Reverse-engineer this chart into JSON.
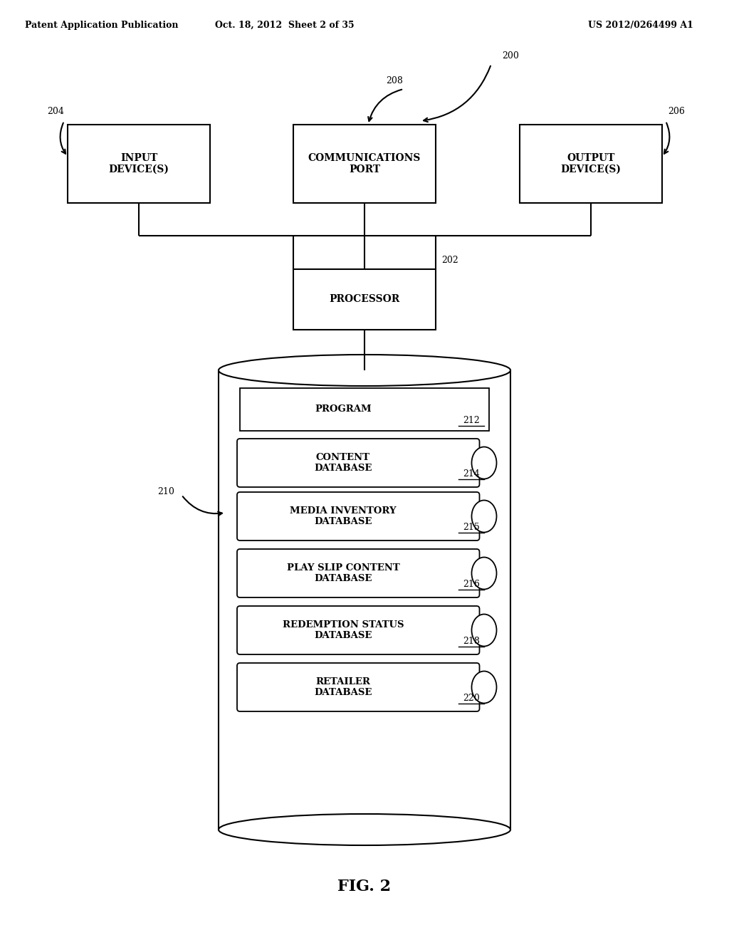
{
  "bg_color": "#ffffff",
  "header_left": "Patent Application Publication",
  "header_mid": "Oct. 18, 2012  Sheet 2 of 35",
  "header_right": "US 2012/0264499 A1",
  "fig_label": "FIG. 2",
  "ref_200": "200",
  "ref_202": "202",
  "ref_204": "204",
  "ref_206": "206",
  "ref_208": "208",
  "ref_210": "210",
  "box_input": "INPUT\nDEVICE(S)",
  "box_comm": "COMMUNICATIONS\nPORT",
  "box_output": "OUTPUT\nDEVICE(S)",
  "box_processor": "PROCESSOR",
  "db_program": "PROGRAM",
  "db_program_ref": "212",
  "db_content": "CONTENT\nDATABASE",
  "db_content_ref": "214",
  "db_media": "MEDIA INVENTORY\nDATABASE",
  "db_media_ref": "215",
  "db_playslip": "PLAY SLIP CONTENT\nDATABASE",
  "db_playslip_ref": "216",
  "db_redemption": "REDEMPTION STATUS\nDATABASE",
  "db_redemption_ref": "218",
  "db_retailer": "RETAILER\nDATABASE",
  "db_retailer_ref": "220"
}
